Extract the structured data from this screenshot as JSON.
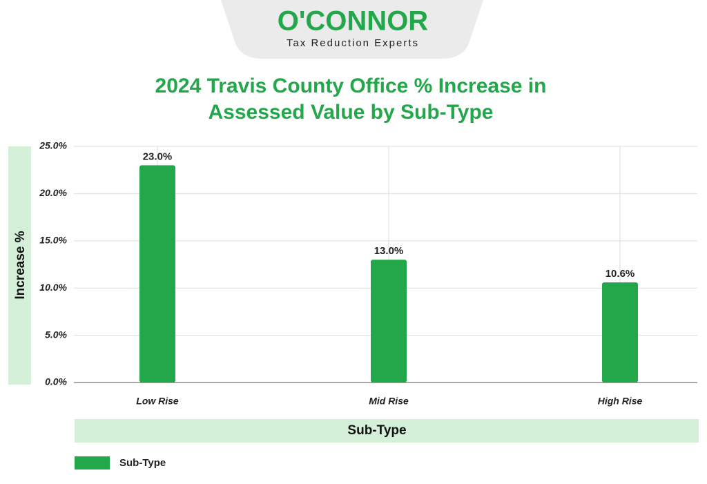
{
  "header": {
    "brand": "O'CONNOR",
    "tagline": "Tax Reduction Experts"
  },
  "chart_data": {
    "type": "bar",
    "title": "2024 Travis County Office % Increase in Assessed Value by Sub-Type",
    "x_label": "Sub-Type",
    "y_label": "Increase %",
    "categories": [
      "Low Rise",
      "Mid Rise",
      "High Rise"
    ],
    "series": [
      {
        "name": "Sub-Type",
        "color": "#22a74a",
        "values": [
          23.0,
          13.0,
          10.6
        ],
        "value_labels": [
          "23.0%",
          "13.0%",
          "10.6%"
        ]
      }
    ],
    "ylim": [
      0,
      25
    ],
    "yticks": [
      {
        "value": 0,
        "label": "0.0%"
      },
      {
        "value": 5,
        "label": "5.0%"
      },
      {
        "value": 10,
        "label": "10.0%"
      },
      {
        "value": 15,
        "label": "15.0%"
      },
      {
        "value": 20,
        "label": "20.0%"
      },
      {
        "value": 25,
        "label": "25.0%"
      }
    ],
    "grid": true,
    "legend": "bottom-left"
  }
}
